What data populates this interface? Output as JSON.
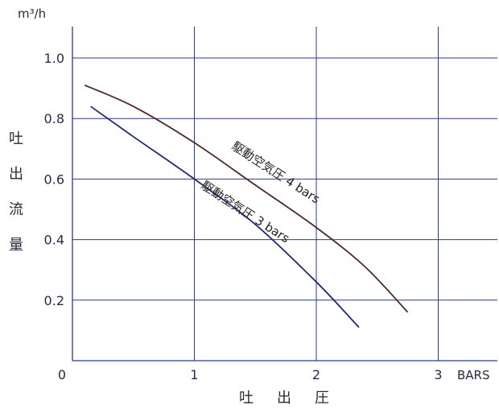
{
  "chart_data": {
    "type": "line",
    "ylabel": "吐出流量",
    "yunit": "m³/h",
    "xlabel": "吐出圧",
    "xunit": "BARS",
    "xlim": [
      0,
      3.5
    ],
    "ylim": [
      0,
      1.05
    ],
    "x_ticks": [
      {
        "value": 0,
        "label": "0"
      },
      {
        "value": 1,
        "label": "1"
      },
      {
        "value": 2,
        "label": "2"
      },
      {
        "value": 3,
        "label": "3"
      }
    ],
    "y_ticks": [
      {
        "value": 0.2,
        "label": "0.2"
      },
      {
        "value": 0.4,
        "label": "0.4"
      },
      {
        "value": 0.6,
        "label": "0.6"
      },
      {
        "value": 0.8,
        "label": "0.8"
      },
      {
        "value": 1.0,
        "label": "1.0"
      }
    ],
    "grid": true,
    "colors": {
      "grid": "#2d3a8c",
      "axis": "#2d3a8c",
      "series_4bar": "#4a2a22",
      "series_3bar": "#1f2a70"
    },
    "series": [
      {
        "name": "駆動空気圧 4 bars",
        "color": "#4a2a22",
        "x": [
          0.1,
          0.5,
          1.0,
          1.5,
          2.0,
          2.4,
          2.75
        ],
        "y": [
          0.91,
          0.84,
          0.72,
          0.58,
          0.44,
          0.31,
          0.16
        ],
        "label_at": [
          1.65,
          0.61
        ]
      },
      {
        "name": "駆動空気圧 3 bars",
        "color": "#1f2a70",
        "x": [
          0.15,
          0.5,
          1.0,
          1.5,
          2.0,
          2.35
        ],
        "y": [
          0.84,
          0.74,
          0.6,
          0.45,
          0.26,
          0.11
        ],
        "label_at": [
          1.4,
          0.48
        ]
      }
    ]
  }
}
